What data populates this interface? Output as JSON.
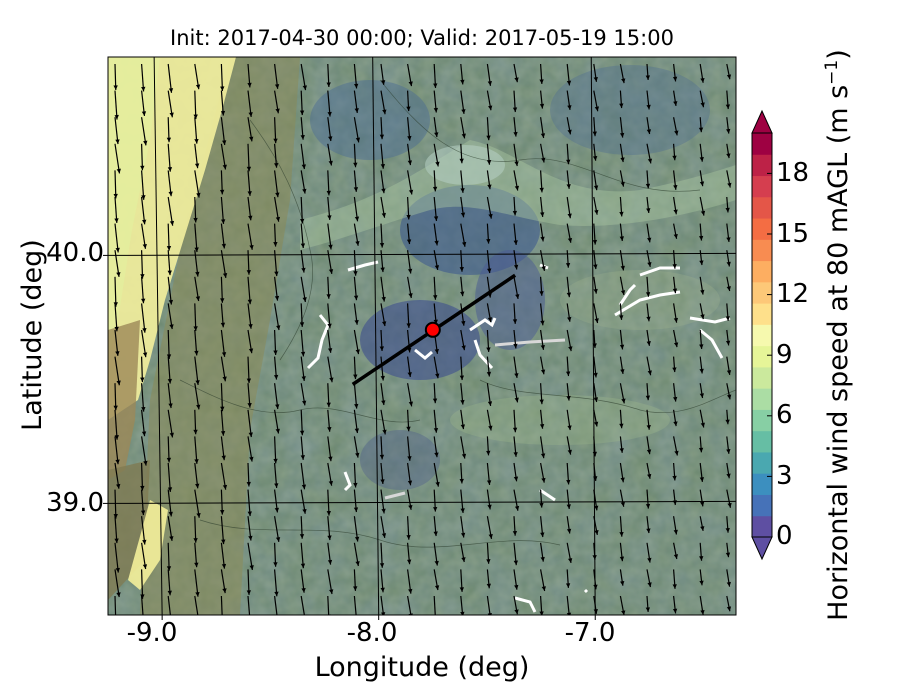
{
  "title": "Init: 2017-04-30 00:00; Valid: 2017-05-19 15:00",
  "xlabel": "Longitude (deg)",
  "ylabel": "Latitude (deg)",
  "colorbar": {
    "label_main": "Horizontal wind speed at 80 mAGL (m s",
    "label_sup": "−1",
    "label_end": ")",
    "ticks": [
      "0",
      "3",
      "6",
      "9",
      "12",
      "15",
      "18"
    ],
    "extend": "both",
    "colors": [
      "#5e4fa2",
      "#4672b8",
      "#3c8fbf",
      "#4aa8b0",
      "#66bea4",
      "#87cfa4",
      "#abdda4",
      "#cbe99d",
      "#e6f598",
      "#f6f9ae",
      "#fee08b",
      "#fdc878",
      "#fdae61",
      "#f88c51",
      "#f46d43",
      "#e45648",
      "#d53e4f",
      "#bd2247",
      "#9e0142"
    ]
  },
  "map": {
    "xticks": [
      "-9.0",
      "-8.0",
      "-7.0"
    ],
    "yticks": [
      "40.0",
      "39.0"
    ],
    "marker_color": "#ff0000",
    "wind_direction": "mostly from north (southward arrows)"
  },
  "chart_data": {
    "type": "heatmap",
    "title": "Init: 2017-04-30 00:00; Valid: 2017-05-19 15:00",
    "xlabel": "Longitude (deg)",
    "ylabel": "Latitude (deg)",
    "xlim": [
      -9.25,
      -6.35
    ],
    "ylim": [
      38.55,
      40.8
    ],
    "x_ticks": [
      -9.0,
      -8.0,
      -7.0
    ],
    "y_ticks": [
      40.0,
      39.0
    ],
    "colorbar_range": [
      0,
      20
    ],
    "colorbar_ticks": [
      0,
      3,
      6,
      9,
      12,
      15,
      18
    ],
    "cross_section_line": {
      "start": [
        -8.12,
        39.48
      ],
      "end": [
        -7.37,
        39.92
      ]
    },
    "point_marker": {
      "lon": -7.75,
      "lat": 39.7
    },
    "grid": true
  }
}
